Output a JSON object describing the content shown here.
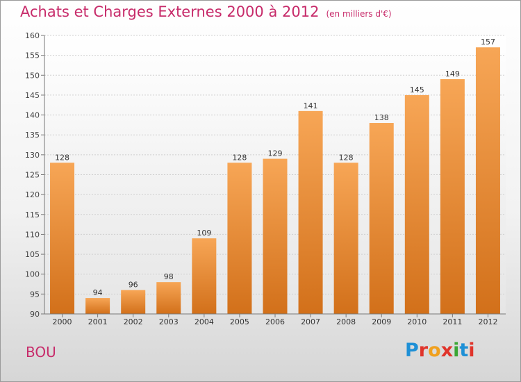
{
  "header": {
    "title": "Achats et Charges Externes 2000 à 2012",
    "unit": "(en milliers d'€)"
  },
  "footer": {
    "town": "BOU",
    "brand_letters": [
      {
        "ch": "P",
        "color": "#1e90d6"
      },
      {
        "ch": "r",
        "color": "#e0342b"
      },
      {
        "ch": "o",
        "color": "#f0a01e"
      },
      {
        "ch": "x",
        "color": "#e0342b"
      },
      {
        "ch": "i",
        "color": "#3aa635"
      },
      {
        "ch": "t",
        "color": "#1e90d6"
      },
      {
        "ch": "i",
        "color": "#e0342b"
      }
    ]
  },
  "chart_data": {
    "type": "bar",
    "categories": [
      "2000",
      "2001",
      "2002",
      "2003",
      "2004",
      "2005",
      "2006",
      "2007",
      "2008",
      "2009",
      "2010",
      "2011",
      "2012"
    ],
    "values": [
      128,
      94,
      96,
      98,
      109,
      128,
      129,
      141,
      128,
      138,
      145,
      149,
      157
    ],
    "ylim": [
      90,
      160
    ],
    "yticks": [
      90,
      95,
      100,
      105,
      110,
      115,
      120,
      125,
      130,
      135,
      140,
      145,
      150,
      155,
      160
    ],
    "grid": true,
    "bar_color_top": "#f7a656",
    "bar_color_bottom": "#d2701a"
  }
}
